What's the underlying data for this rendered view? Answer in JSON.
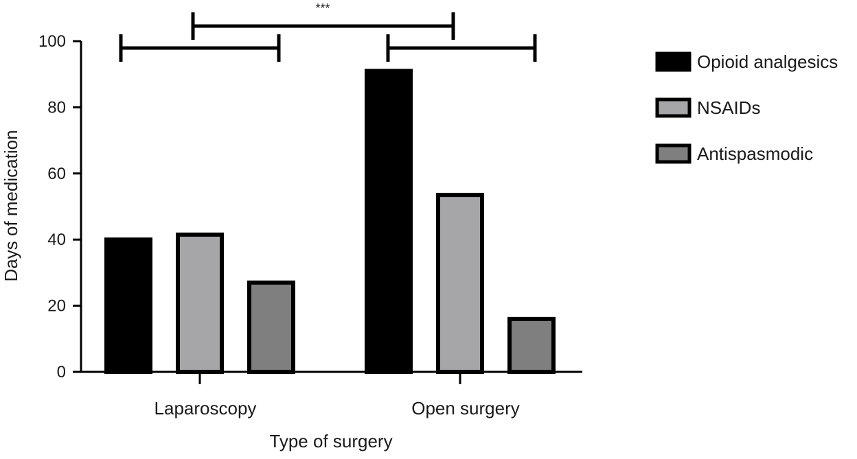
{
  "chart_data": {
    "type": "bar",
    "xlabel": "Type of surgery",
    "ylabel": "Days of medication",
    "ylim": [
      0,
      100
    ],
    "yticks": [
      0,
      20,
      40,
      60,
      80,
      100
    ],
    "grid": false,
    "legend_position": "right",
    "categories": [
      "Laparoscopy",
      "Open surgery"
    ],
    "series": [
      {
        "name": "Opioid analgesics",
        "values": [
          40,
          91
        ],
        "color": "#000000"
      },
      {
        "name": "NSAIDs",
        "values": [
          41.5,
          53.5
        ],
        "color": "#a6a6a8"
      },
      {
        "name": "Antispasmodic",
        "values": [
          27,
          16
        ],
        "color": "#7f7f7f"
      }
    ],
    "annotations": [
      {
        "type": "significance",
        "label": "***"
      }
    ]
  }
}
